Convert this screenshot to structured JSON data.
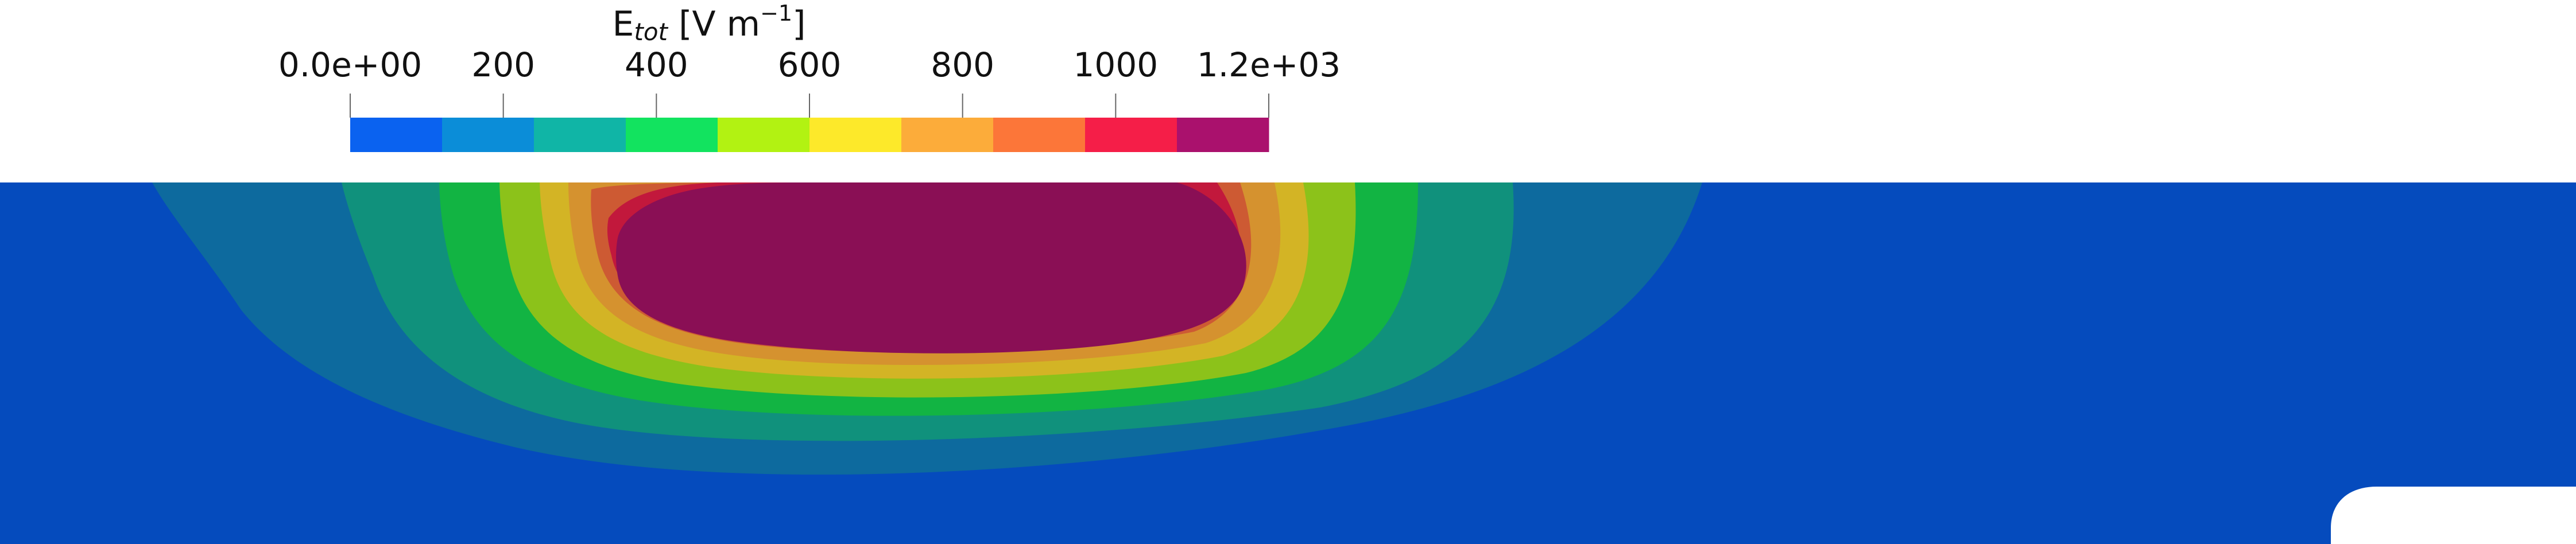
{
  "colorbar": {
    "title_main": "E",
    "title_sub": "tot",
    "title_unit": " [V m",
    "title_exp": "−1",
    "title_close": "]",
    "tick_labels": [
      "0.0e+00",
      "200",
      "400",
      "600",
      "800",
      "1000",
      "1.2e+03"
    ],
    "tick_values": [
      0,
      200,
      400,
      600,
      800,
      1000,
      1200
    ],
    "range": [
      0,
      1200
    ],
    "bands": [
      {
        "lo": 0,
        "hi": 120,
        "color": "#0a62f0"
      },
      {
        "lo": 120,
        "hi": 240,
        "color": "#0b8dd8"
      },
      {
        "lo": 240,
        "hi": 360,
        "color": "#10b5a6"
      },
      {
        "lo": 360,
        "hi": 480,
        "color": "#12e35f"
      },
      {
        "lo": 480,
        "hi": 600,
        "color": "#b2f212"
      },
      {
        "lo": 600,
        "hi": 720,
        "color": "#fde92a"
      },
      {
        "lo": 720,
        "hi": 840,
        "color": "#fcac3a"
      },
      {
        "lo": 840,
        "hi": 960,
        "color": "#fc7639"
      },
      {
        "lo": 960,
        "hi": 1080,
        "color": "#f51e48"
      },
      {
        "lo": 1080,
        "hi": 1200,
        "color": "#aa116d"
      }
    ]
  },
  "field_colors": {
    "background": "#054bbd",
    "levels": [
      "#0d6a9e",
      "#10917c",
      "#12b443",
      "#8cc21a",
      "#d3b425",
      "#d5922f",
      "#cd5a33",
      "#c2183c",
      "#8a0f55"
    ]
  }
}
